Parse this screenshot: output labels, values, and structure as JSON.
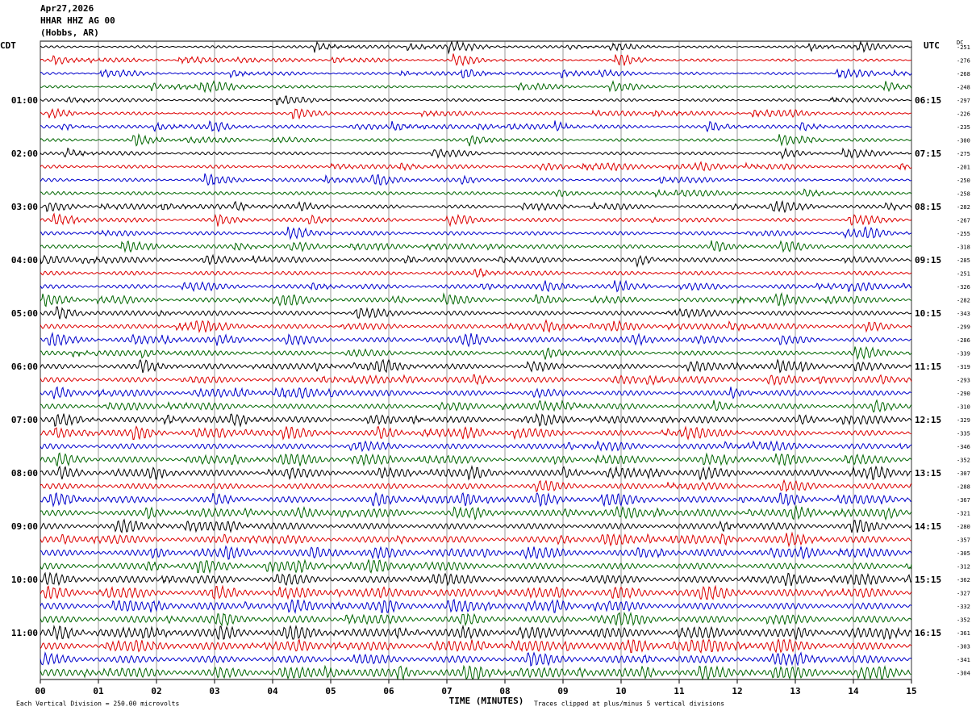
{
  "header": {
    "date": "Apr27,2026",
    "station": "HHAR HHZ AG 00",
    "location": "(Hobbs, AR)"
  },
  "left_axis": {
    "title": "CDT",
    "labels": [
      "01:00",
      "02:00",
      "03:00",
      "04:00",
      "05:00",
      "06:00",
      "07:00",
      "08:00",
      "09:00",
      "10:00",
      "11:00"
    ]
  },
  "right_axis": {
    "title": "UTC",
    "labels": [
      "06:15",
      "07:15",
      "08:15",
      "09:15",
      "10:15",
      "11:15",
      "12:15",
      "13:15",
      "14:15",
      "15:15",
      "16:15"
    ]
  },
  "dc_header": "DC",
  "dc_values": [
    "-251",
    "-276",
    "-268",
    "-248",
    "-297",
    "-226",
    "-235",
    "-300",
    "-275",
    "-201",
    "-250",
    "-258",
    "-282",
    "-267",
    "-255",
    "-318",
    "-285",
    "-251",
    "-326",
    "-282",
    "-343",
    "-299",
    "-286",
    "-339",
    "-319",
    "-293",
    "-290",
    "-310",
    "-329",
    "-335",
    "-346",
    "-352",
    "-307",
    "-288",
    "-367",
    "-321",
    "-280",
    "-357",
    "-305",
    "-312",
    "-362",
    "-327",
    "-332",
    "-352",
    "-361",
    "-303",
    "-341",
    "-304"
  ],
  "trace_colors": [
    "#000000",
    "#dd0000",
    "#0000cc",
    "#006600"
  ],
  "x_ticks": [
    "00",
    "01",
    "02",
    "03",
    "04",
    "05",
    "06",
    "07",
    "08",
    "09",
    "10",
    "11",
    "12",
    "13",
    "14",
    "15"
  ],
  "x_title": "TIME (MINUTES)",
  "footer": {
    "scale": "Each Vertical Division =  250.00 microvolts",
    "clip": "Traces clipped at plus/minus 5 vertical divisions"
  }
}
